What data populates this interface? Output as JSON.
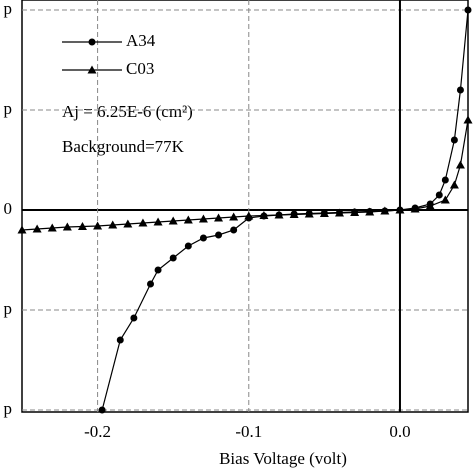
{
  "chart_data": {
    "type": "line",
    "xlabel": "Bias Voltage (volt)",
    "annotations": [
      "Aj = 6.25E-6 (cm²)",
      "Background=77K"
    ],
    "xlim": [
      -0.25,
      0.045
    ],
    "ylim": [
      -2.02,
      2.1
    ],
    "xticks": [
      -0.2,
      -0.1,
      {
        "value": 0,
        "label": "0.0"
      }
    ],
    "yticks": [
      {
        "value": 2,
        "label": "p"
      },
      {
        "value": 1,
        "label": "p"
      },
      0,
      {
        "value": -1,
        "label": "p"
      },
      {
        "value": -2,
        "label": "p"
      }
    ],
    "grid": true,
    "legend": "upper left",
    "series": [
      {
        "name": "A34",
        "color": "#000000",
        "marker": "circle",
        "x": [
          -0.197,
          -0.185,
          -0.176,
          -0.165,
          -0.16,
          -0.15,
          -0.14,
          -0.13,
          -0.12,
          -0.11,
          -0.1,
          -0.09,
          -0.08,
          -0.07,
          -0.06,
          -0.05,
          -0.04,
          -0.03,
          -0.02,
          -0.01,
          0,
          0.01,
          0.02,
          0.026,
          0.03,
          0.036,
          0.04,
          0.045
        ],
        "values": [
          -2.0,
          -1.3,
          -1.08,
          -0.74,
          -0.6,
          -0.48,
          -0.36,
          -0.28,
          -0.25,
          -0.2,
          -0.08,
          -0.06,
          -0.05,
          -0.04,
          -0.035,
          -0.03,
          -0.025,
          -0.02,
          -0.015,
          -0.01,
          0,
          0.02,
          0.06,
          0.15,
          0.3,
          0.7,
          1.2,
          2.0
        ]
      },
      {
        "name": "C03",
        "color": "#000000",
        "marker": "triangle",
        "x": [
          -0.25,
          -0.24,
          -0.23,
          -0.22,
          -0.21,
          -0.2,
          -0.19,
          -0.18,
          -0.17,
          -0.16,
          -0.15,
          -0.14,
          -0.13,
          -0.12,
          -0.11,
          -0.1,
          -0.09,
          -0.08,
          -0.07,
          -0.06,
          -0.05,
          -0.04,
          -0.03,
          -0.02,
          -0.01,
          0,
          0.01,
          0.02,
          0.03,
          0.036,
          0.04,
          0.045
        ],
        "values": [
          -0.2,
          -0.19,
          -0.18,
          -0.17,
          -0.165,
          -0.16,
          -0.15,
          -0.14,
          -0.13,
          -0.12,
          -0.11,
          -0.1,
          -0.09,
          -0.08,
          -0.07,
          -0.06,
          -0.055,
          -0.05,
          -0.045,
          -0.04,
          -0.035,
          -0.03,
          -0.025,
          -0.02,
          -0.01,
          0,
          0.01,
          0.04,
          0.1,
          0.25,
          0.45,
          0.9
        ]
      }
    ]
  }
}
